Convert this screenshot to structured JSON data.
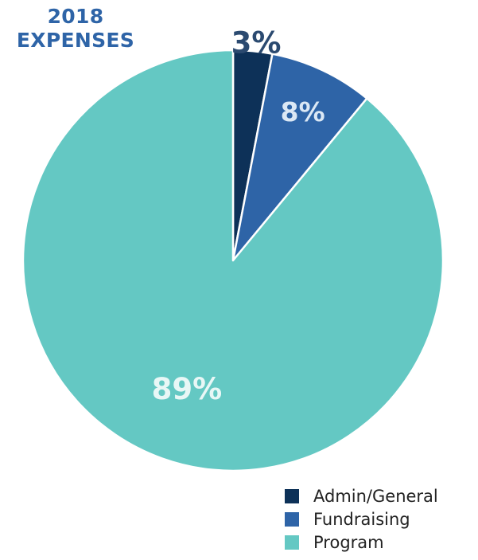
{
  "title": {
    "line1": "2018",
    "line2": "EXPENSES"
  },
  "chart_data": {
    "type": "pie",
    "title": "2018 EXPENSES",
    "start_angle": "12 o'clock, clockwise",
    "slices": [
      {
        "label": "Admin/General",
        "value": 3,
        "display": "3%",
        "color": "#0d3158",
        "label_color": "#2b4a70"
      },
      {
        "label": "Fundraising",
        "value": 8,
        "display": "8%",
        "color": "#2e64a7",
        "label_color": "#dbe8f5"
      },
      {
        "label": "Program",
        "value": 89,
        "display": "89%",
        "color": "#64c8c3",
        "label_color": "#e8f7f6"
      }
    ],
    "legend_placement": "bottom-right"
  },
  "legend": {
    "items": [
      {
        "label": "Admin/General",
        "color": "#0d3158"
      },
      {
        "label": "Fundraising",
        "color": "#2e64a7"
      },
      {
        "label": "Program",
        "color": "#64c8c3"
      }
    ]
  }
}
